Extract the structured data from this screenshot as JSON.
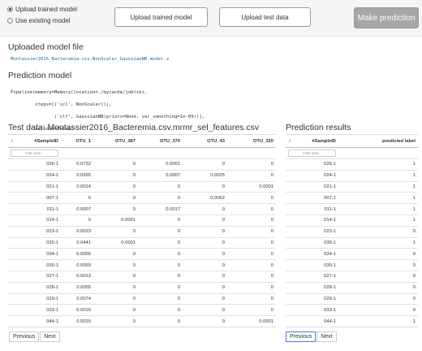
{
  "upload_mode": {
    "options": [
      {
        "label": "Upload trained model",
        "selected": true
      },
      {
        "label": "Use existing model",
        "selected": false
      }
    ]
  },
  "toolbar": {
    "upload_model_label": "Upload trained model",
    "upload_test_label": "Upload test data",
    "predict_label": "Make prediction"
  },
  "uploaded_model": {
    "heading": "Uploaded model file",
    "filename": "Montassier2016_Bacteremia.csv.NonScaler_GaussianNB.model.z"
  },
  "prediction_model": {
    "heading": "Prediction model",
    "lines": [
      "Pipeline(memory=Memory(location=./mycache/joblib),",
      "         steps=[('scl', NonScaler()),",
      "                ('clf', GaussianNB(priors=None, var_smoothing=1e-09))],",
      "         verbose=False)"
    ]
  },
  "test_data": {
    "heading": "Test data: Montassier2016_Bacteremia.csv.mrmr_sel_features.csv",
    "columns": [
      "#SampleID",
      "OTU_1",
      "OTU_387",
      "OTU_370",
      "OTU_43",
      "OTU_320"
    ],
    "filter_placeholder": "Filter data...",
    "rows": [
      [
        "026-1",
        "0.0732",
        "0",
        "0.0001",
        "0",
        "0"
      ],
      [
        "024-1",
        "0.0265",
        "0",
        "0.0007",
        "0.0025",
        "0"
      ],
      [
        "021-1",
        "0.0014",
        "0",
        "0",
        "0",
        "0.0001"
      ],
      [
        "007-1",
        "0",
        "0",
        "0",
        "0.0062",
        "0"
      ],
      [
        "011-1",
        "0.0007",
        "0",
        "0.0017",
        "0",
        "0"
      ],
      [
        "014-1",
        "0",
        "0.0001",
        "0",
        "0",
        "0"
      ],
      [
        "023-1",
        "0.0023",
        "0",
        "0",
        "0",
        "0"
      ],
      [
        "035-1",
        "0.0441",
        "0.0001",
        "0",
        "0",
        "0"
      ],
      [
        "034-1",
        "0.0066",
        "0",
        "0",
        "0",
        "0"
      ],
      [
        "030-1",
        "0.0059",
        "0",
        "0",
        "0",
        "0"
      ],
      [
        "027-1",
        "0.0013",
        "0",
        "0",
        "0",
        "0"
      ],
      [
        "028-1",
        "0.0055",
        "0",
        "0",
        "0",
        "0"
      ],
      [
        "029-1",
        "0.0074",
        "0",
        "0",
        "0",
        "0"
      ],
      [
        "033-1",
        "0.0016",
        "0",
        "0",
        "0",
        "0"
      ],
      [
        "044-1",
        "0.0015",
        "0",
        "0",
        "0",
        "0.0001"
      ]
    ],
    "pager": {
      "previous": "Previous",
      "next": "Next"
    }
  },
  "prediction_results": {
    "heading": "Prediction results",
    "columns": [
      "#SampleID",
      "predicted label"
    ],
    "filter_placeholder": "Filter data...",
    "rows": [
      [
        "026-1",
        "1"
      ],
      [
        "024-1",
        "1"
      ],
      [
        "021-1",
        "1"
      ],
      [
        "007-1",
        "1"
      ],
      [
        "011-1",
        "1"
      ],
      [
        "014-1",
        "1"
      ],
      [
        "023-1",
        "0"
      ],
      [
        "035-1",
        "1"
      ],
      [
        "034-1",
        "0"
      ],
      [
        "030-1",
        "0"
      ],
      [
        "027-1",
        "0"
      ],
      [
        "028-1",
        "0"
      ],
      [
        "029-1",
        "0"
      ],
      [
        "033-1",
        "0"
      ],
      [
        "044-1",
        "1"
      ]
    ],
    "pager": {
      "previous": "Previous",
      "next": "Next"
    }
  }
}
